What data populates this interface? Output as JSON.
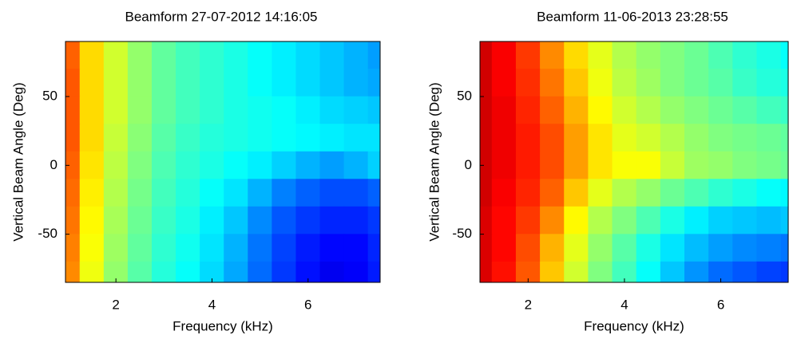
{
  "chart_data": [
    {
      "type": "heatmap",
      "title": "Beamform 27-07-2012 14:16:05",
      "x_label": "Frequency (kHz)",
      "y_label": "Vertical Beam Angle (Deg)",
      "colormap": "jet",
      "clim": [
        0,
        1
      ],
      "x": [
        1,
        1.5,
        2,
        2.5,
        3,
        3.5,
        4,
        4.5,
        5,
        5.5,
        6,
        6.5,
        7,
        7.5
      ],
      "y": [
        80,
        60,
        40,
        20,
        0,
        -20,
        -40,
        -60,
        -80
      ],
      "z": [
        [
          0.78,
          0.66,
          0.58,
          0.52,
          0.47,
          0.44,
          0.42,
          0.4,
          0.38,
          0.36,
          0.34,
          0.32,
          0.3,
          0.28
        ],
        [
          0.79,
          0.66,
          0.58,
          0.52,
          0.47,
          0.44,
          0.42,
          0.4,
          0.38,
          0.36,
          0.34,
          0.32,
          0.3,
          0.29
        ],
        [
          0.79,
          0.66,
          0.58,
          0.52,
          0.47,
          0.44,
          0.42,
          0.4,
          0.39,
          0.38,
          0.36,
          0.34,
          0.33,
          0.32
        ],
        [
          0.79,
          0.66,
          0.57,
          0.51,
          0.46,
          0.43,
          0.41,
          0.4,
          0.39,
          0.38,
          0.37,
          0.36,
          0.35,
          0.35
        ],
        [
          0.78,
          0.65,
          0.56,
          0.5,
          0.45,
          0.42,
          0.4,
          0.38,
          0.36,
          0.33,
          0.3,
          0.28,
          0.3,
          0.33
        ],
        [
          0.77,
          0.64,
          0.55,
          0.49,
          0.44,
          0.41,
          0.38,
          0.35,
          0.3,
          0.25,
          0.22,
          0.2,
          0.2,
          0.22
        ],
        [
          0.76,
          0.63,
          0.54,
          0.48,
          0.43,
          0.4,
          0.36,
          0.32,
          0.26,
          0.21,
          0.18,
          0.16,
          0.16,
          0.18
        ],
        [
          0.75,
          0.62,
          0.53,
          0.47,
          0.42,
          0.39,
          0.35,
          0.3,
          0.24,
          0.19,
          0.15,
          0.13,
          0.13,
          0.16
        ],
        [
          0.74,
          0.61,
          0.52,
          0.46,
          0.41,
          0.38,
          0.34,
          0.29,
          0.23,
          0.18,
          0.14,
          0.11,
          0.12,
          0.15
        ]
      ],
      "xlim": [
        0.95,
        7.5
      ],
      "xticks": [
        2,
        4,
        6
      ],
      "ylim": [
        -85,
        90
      ],
      "yticks": [
        -50,
        0,
        50
      ]
    },
    {
      "type": "heatmap",
      "title": "Beamform 11-06-2013 23:28:55",
      "x_label": "Frequency (kHz)",
      "y_label": "Vertical Beam Angle (Deg)",
      "colormap": "jet",
      "clim": [
        0,
        1
      ],
      "x": [
        1,
        1.5,
        2,
        2.5,
        3,
        3.5,
        4,
        4.5,
        5,
        5.5,
        6,
        6.5,
        7,
        7.5
      ],
      "y": [
        80,
        60,
        40,
        20,
        0,
        -20,
        -40,
        -60,
        -80
      ],
      "z": [
        [
          0.92,
          0.88,
          0.82,
          0.74,
          0.66,
          0.6,
          0.55,
          0.52,
          0.5,
          0.48,
          0.45,
          0.42,
          0.4,
          0.38
        ],
        [
          0.92,
          0.88,
          0.83,
          0.76,
          0.68,
          0.61,
          0.56,
          0.53,
          0.5,
          0.48,
          0.46,
          0.43,
          0.41,
          0.4
        ],
        [
          0.92,
          0.89,
          0.84,
          0.78,
          0.7,
          0.63,
          0.58,
          0.55,
          0.52,
          0.5,
          0.48,
          0.46,
          0.44,
          0.43
        ],
        [
          0.92,
          0.89,
          0.85,
          0.8,
          0.72,
          0.65,
          0.6,
          0.58,
          0.55,
          0.52,
          0.5,
          0.49,
          0.48,
          0.47
        ],
        [
          0.92,
          0.89,
          0.85,
          0.8,
          0.72,
          0.65,
          0.62,
          0.62,
          0.57,
          0.53,
          0.52,
          0.5,
          0.49,
          0.48
        ],
        [
          0.92,
          0.88,
          0.84,
          0.78,
          0.68,
          0.6,
          0.55,
          0.52,
          0.48,
          0.45,
          0.42,
          0.4,
          0.38,
          0.37
        ],
        [
          0.91,
          0.87,
          0.82,
          0.74,
          0.63,
          0.55,
          0.5,
          0.45,
          0.4,
          0.36,
          0.33,
          0.32,
          0.31,
          0.32
        ],
        [
          0.91,
          0.87,
          0.8,
          0.7,
          0.6,
          0.52,
          0.46,
          0.4,
          0.35,
          0.31,
          0.28,
          0.26,
          0.25,
          0.24
        ],
        [
          0.91,
          0.86,
          0.79,
          0.68,
          0.58,
          0.5,
          0.44,
          0.38,
          0.32,
          0.27,
          0.23,
          0.21,
          0.19,
          0.18
        ]
      ],
      "xlim": [
        1,
        7.4
      ],
      "xticks": [
        2,
        4,
        6
      ],
      "ylim": [
        -85,
        90
      ],
      "yticks": [
        -50,
        0,
        50
      ]
    }
  ]
}
